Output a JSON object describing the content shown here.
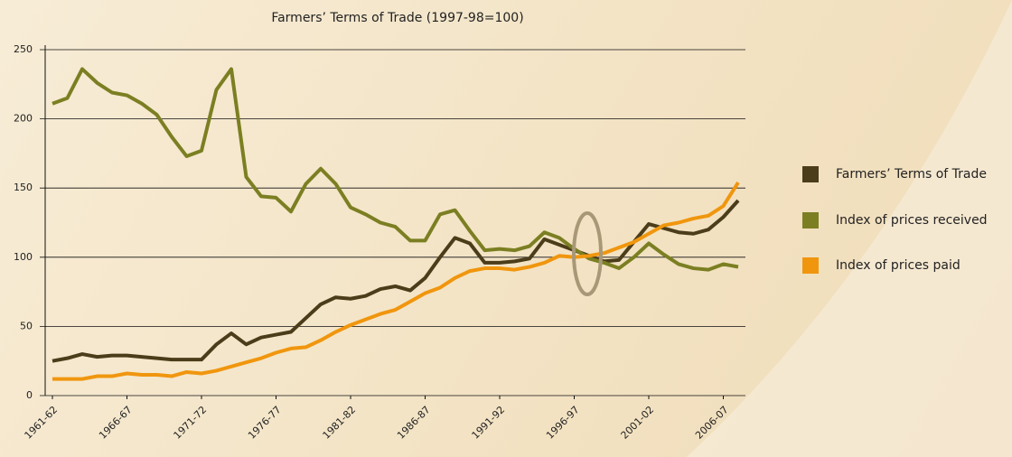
{
  "chart_data": {
    "type": "line",
    "title": "Farmers’ Terms of Trade (1997-98=100)",
    "categories": [
      "1961-62",
      null,
      null,
      null,
      null,
      "1966-67",
      null,
      null,
      null,
      null,
      "1971-72",
      null,
      null,
      null,
      null,
      "1976-77",
      null,
      null,
      null,
      null,
      "1981-82",
      null,
      null,
      null,
      null,
      "1986-87",
      null,
      null,
      null,
      null,
      "1991-92",
      null,
      null,
      null,
      null,
      "1996-97",
      null,
      null,
      null,
      null,
      "2001-02",
      null,
      null,
      null,
      null,
      "2006-07",
      null
    ],
    "series": [
      {
        "name": "Farmers’ Terms of Trade",
        "color": "#4b3d1a",
        "values": [
          25,
          27,
          30,
          28,
          29,
          29,
          28,
          27,
          26,
          26,
          26,
          37,
          45,
          37,
          42,
          44,
          46,
          56,
          66,
          71,
          70,
          72,
          77,
          79,
          76,
          85,
          100,
          114,
          110,
          96,
          96,
          97,
          99,
          113,
          109,
          105,
          101,
          97,
          98,
          111,
          124,
          121,
          118,
          117,
          120,
          129,
          141
        ]
      },
      {
        "name": "Index of prices received",
        "color": "#7b7f22",
        "values": [
          211,
          215,
          236,
          226,
          219,
          217,
          211,
          203,
          187,
          173,
          177,
          221,
          236,
          158,
          144,
          143,
          133,
          153,
          164,
          153,
          136,
          131,
          125,
          122,
          112,
          112,
          131,
          134,
          119,
          105,
          106,
          105,
          108,
          118,
          114,
          106,
          99,
          96,
          92,
          100,
          110,
          102,
          95,
          92,
          91,
          95,
          93
        ]
      },
      {
        "name": "Index of prices paid",
        "color": "#f0960e",
        "values": [
          12,
          12,
          12,
          14,
          14,
          16,
          15,
          15,
          14,
          17,
          16,
          18,
          21,
          24,
          27,
          31,
          34,
          35,
          40,
          46,
          51,
          55,
          59,
          62,
          68,
          74,
          78,
          85,
          90,
          92,
          92,
          91,
          93,
          96,
          101,
          100,
          101,
          103,
          107,
          111,
          117,
          123,
          125,
          128,
          130,
          137,
          154
        ]
      }
    ],
    "ylim": [
      0,
      250
    ],
    "yticks": [
      0,
      50,
      100,
      150,
      200,
      250
    ],
    "grid": true
  }
}
